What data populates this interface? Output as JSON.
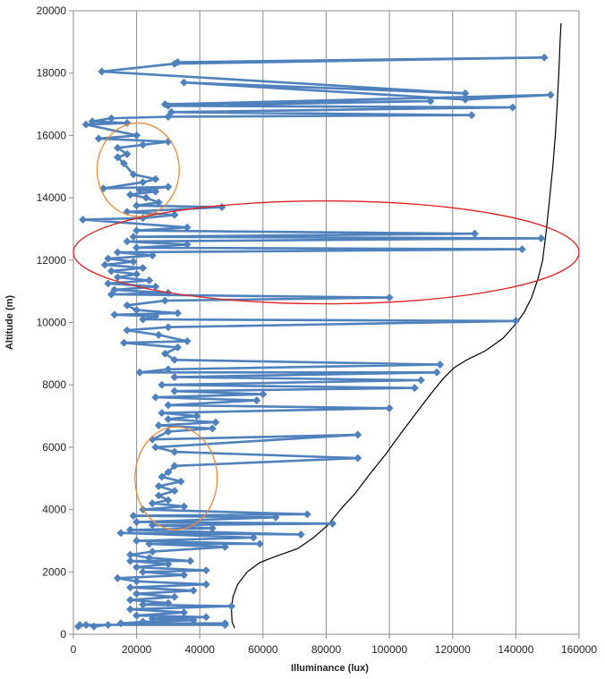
{
  "chart_data": {
    "type": "scatter",
    "title": "",
    "xlabel": "Illuminance  (lux)",
    "ylabel": "Altitude (m)",
    "xlim": [
      0,
      160000
    ],
    "ylim": [
      0,
      20000
    ],
    "x_ticks": [
      0,
      20000,
      40000,
      60000,
      80000,
      100000,
      120000,
      140000,
      160000
    ],
    "y_ticks": [
      0,
      2000,
      4000,
      6000,
      8000,
      10000,
      12000,
      14000,
      16000,
      18000,
      20000
    ],
    "grid": "vertical gridlines",
    "legend": "none",
    "colors": {
      "series": "#4F81BD",
      "curve": "#000000",
      "ellipse_red": "#E02020",
      "ellipse_orange": "#E88A3C"
    },
    "series": [
      {
        "style": "line-with-diamond-markers",
        "points": [
          [
            48000,
            300
          ],
          [
            2000,
            300
          ],
          [
            1500,
            250
          ],
          [
            4000,
            300
          ],
          [
            6500,
            250
          ],
          [
            11000,
            300
          ],
          [
            48000,
            350
          ],
          [
            15000,
            350
          ],
          [
            22000,
            400
          ],
          [
            38000,
            450
          ],
          [
            25000,
            500
          ],
          [
            42000,
            550
          ],
          [
            20000,
            600
          ],
          [
            35000,
            700
          ],
          [
            18000,
            800
          ],
          [
            50000,
            900
          ],
          [
            22000,
            950
          ],
          [
            30000,
            1000
          ],
          [
            18000,
            1100
          ],
          [
            32000,
            1200
          ],
          [
            20000,
            1300
          ],
          [
            38000,
            1400
          ],
          [
            18000,
            1500
          ],
          [
            42000,
            1600
          ],
          [
            20000,
            1700
          ],
          [
            14000,
            1800
          ],
          [
            35000,
            1900
          ],
          [
            22000,
            2000
          ],
          [
            42000,
            2050
          ],
          [
            20000,
            2150
          ],
          [
            30000,
            2250
          ],
          [
            18000,
            2350
          ],
          [
            37000,
            2350
          ],
          [
            24000,
            2450
          ],
          [
            18000,
            2550
          ],
          [
            25000,
            2650
          ],
          [
            48000,
            2800
          ],
          [
            24000,
            2900
          ],
          [
            59000,
            2900
          ],
          [
            20000,
            3000
          ],
          [
            57000,
            3100
          ],
          [
            15000,
            3250
          ],
          [
            72000,
            3200
          ],
          [
            18000,
            3350
          ],
          [
            44000,
            3400
          ],
          [
            25000,
            3500
          ],
          [
            82000,
            3550
          ],
          [
            20000,
            3600
          ],
          [
            64000,
            3750
          ],
          [
            19000,
            3800
          ],
          [
            74000,
            3850
          ],
          [
            22000,
            4000
          ],
          [
            35000,
            4100
          ],
          [
            25000,
            4200
          ],
          [
            30000,
            4300
          ],
          [
            27000,
            4450
          ],
          [
            32000,
            4600
          ],
          [
            27000,
            4750
          ],
          [
            34000,
            4900
          ],
          [
            28000,
            5050
          ],
          [
            30000,
            5200
          ],
          [
            32000,
            5400
          ],
          [
            90000,
            5650
          ],
          [
            32000,
            5850
          ],
          [
            26000,
            6000
          ],
          [
            90000,
            6400
          ],
          [
            25000,
            6250
          ],
          [
            30000,
            6500
          ],
          [
            44000,
            6600
          ],
          [
            27000,
            6700
          ],
          [
            45000,
            6800
          ],
          [
            30000,
            6900
          ],
          [
            39000,
            7000
          ],
          [
            28000,
            7100
          ],
          [
            100000,
            7250
          ],
          [
            30000,
            7350
          ],
          [
            58000,
            7500
          ],
          [
            26000,
            7600
          ],
          [
            60000,
            7700
          ],
          [
            32000,
            7800
          ],
          [
            108000,
            7900
          ],
          [
            28000,
            8000
          ],
          [
            110000,
            8150
          ],
          [
            32000,
            8250
          ],
          [
            115000,
            8400
          ],
          [
            21000,
            8400
          ],
          [
            30000,
            8500
          ],
          [
            116000,
            8650
          ],
          [
            32000,
            8800
          ],
          [
            29000,
            9000
          ],
          [
            33000,
            9200
          ],
          [
            16000,
            9350
          ],
          [
            36000,
            9400
          ],
          [
            27000,
            9600
          ],
          [
            17000,
            9750
          ],
          [
            30000,
            9850
          ],
          [
            140000,
            10050
          ],
          [
            22000,
            10100
          ],
          [
            26000,
            10200
          ],
          [
            13000,
            10250
          ],
          [
            33000,
            10300
          ],
          [
            20000,
            10400
          ],
          [
            17000,
            10550
          ],
          [
            29000,
            10700
          ],
          [
            100000,
            10800
          ],
          [
            12000,
            10900
          ],
          [
            30000,
            10950
          ],
          [
            13000,
            11050
          ],
          [
            26000,
            11150
          ],
          [
            11000,
            11250
          ],
          [
            24000,
            11350
          ],
          [
            14000,
            11450
          ],
          [
            20000,
            11550
          ],
          [
            12000,
            11650
          ],
          [
            22000,
            11750
          ],
          [
            10000,
            11850
          ],
          [
            19000,
            11950
          ],
          [
            11000,
            12050
          ],
          [
            25000,
            12150
          ],
          [
            14000,
            12250
          ],
          [
            142000,
            12350
          ],
          [
            20000,
            12400
          ],
          [
            36000,
            12500
          ],
          [
            17000,
            12600
          ],
          [
            148000,
            12700
          ],
          [
            19000,
            12750
          ],
          [
            127000,
            12850
          ],
          [
            20000,
            12950
          ],
          [
            36000,
            13050
          ],
          [
            3000,
            13300
          ],
          [
            22000,
            13350
          ],
          [
            32000,
            13450
          ],
          [
            17000,
            13550
          ],
          [
            47000,
            13700
          ],
          [
            20000,
            13750
          ],
          [
            27000,
            13850
          ],
          [
            23000,
            14000
          ],
          [
            18000,
            14100
          ],
          [
            26000,
            14200
          ],
          [
            21000,
            14250
          ],
          [
            30000,
            14350
          ],
          [
            9500,
            14300
          ],
          [
            22000,
            14500
          ],
          [
            26000,
            14600
          ],
          [
            19000,
            14750
          ],
          [
            16000,
            15100
          ],
          [
            14000,
            15300
          ],
          [
            17000,
            15400
          ],
          [
            14000,
            15600
          ],
          [
            22000,
            15700
          ],
          [
            30000,
            15800
          ],
          [
            8000,
            15900
          ],
          [
            20000,
            16000
          ],
          [
            4000,
            16350
          ],
          [
            17000,
            16400
          ],
          [
            6000,
            16450
          ],
          [
            12000,
            16550
          ],
          [
            30000,
            16600
          ],
          [
            126000,
            16650
          ],
          [
            31000,
            16750
          ],
          [
            139000,
            16900
          ],
          [
            30000,
            16950
          ],
          [
            113000,
            17100
          ],
          [
            29000,
            17000
          ],
          [
            151000,
            17300
          ],
          [
            124000,
            17150
          ],
          [
            35000,
            17700
          ],
          [
            124000,
            17350
          ],
          [
            9000,
            18050
          ],
          [
            32000,
            18300
          ],
          [
            149000,
            18500
          ],
          [
            33000,
            18350
          ]
        ]
      }
    ],
    "reference_curve": {
      "style": "black-line",
      "points": [
        [
          51000,
          200
        ],
        [
          50200,
          400
        ],
        [
          50000,
          800
        ],
        [
          50500,
          1200
        ],
        [
          52000,
          1600
        ],
        [
          55000,
          2000
        ],
        [
          59000,
          2300
        ],
        [
          64000,
          2500
        ],
        [
          71000,
          2750
        ],
        [
          76000,
          3100
        ],
        [
          80500,
          3500
        ],
        [
          84500,
          4000
        ],
        [
          89000,
          4500
        ],
        [
          93500,
          5100
        ],
        [
          99000,
          5800
        ],
        [
          104000,
          6500
        ],
        [
          108500,
          7100
        ],
        [
          113000,
          7700
        ],
        [
          117000,
          8200
        ],
        [
          120500,
          8550
        ],
        [
          124500,
          8800
        ],
        [
          130500,
          9100
        ],
        [
          136000,
          9500
        ],
        [
          139500,
          9900
        ],
        [
          142500,
          10300
        ],
        [
          145000,
          10800
        ],
        [
          147000,
          11400
        ],
        [
          148500,
          12000
        ],
        [
          149700,
          13000
        ],
        [
          150700,
          14000
        ],
        [
          151700,
          15000
        ],
        [
          152500,
          16000
        ],
        [
          153100,
          17000
        ],
        [
          153600,
          18000
        ],
        [
          154000,
          19000
        ],
        [
          154300,
          19600
        ]
      ]
    },
    "annotations": [
      {
        "shape": "ellipse",
        "color": "red",
        "cx": 80000,
        "cy": 12250,
        "rx": 80000,
        "ry": 1650
      },
      {
        "shape": "ellipse",
        "color": "orange",
        "cx": 20500,
        "cy": 14900,
        "rx": 13000,
        "ry": 1500
      },
      {
        "shape": "ellipse",
        "color": "orange",
        "cx": 32500,
        "cy": 5000,
        "rx": 13000,
        "ry": 1650
      }
    ]
  }
}
